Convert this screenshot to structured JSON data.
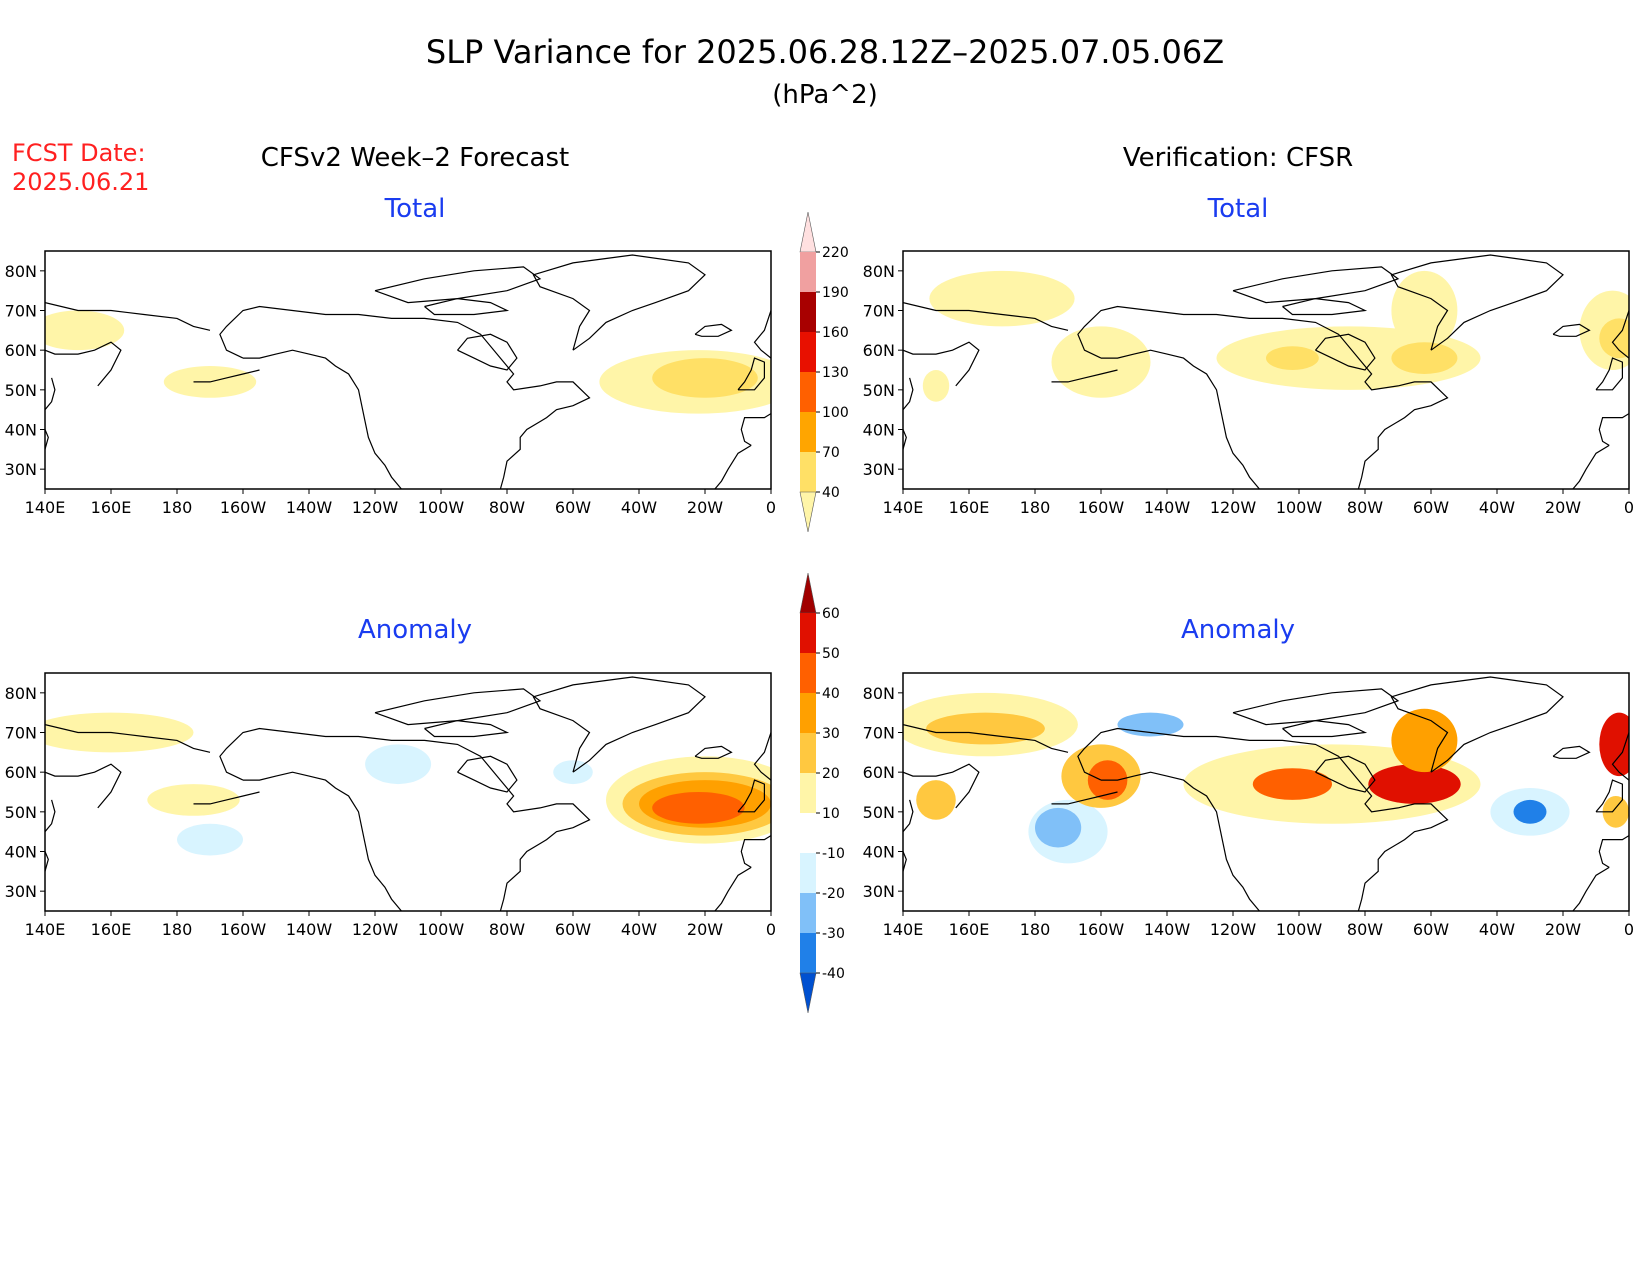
{
  "title": "SLP Variance for 2025.06.28.12Z–2025.07.05.06Z",
  "units": "(hPa^2)",
  "fcst_date_label": "FCST Date:",
  "fcst_date": "2025.06.21",
  "column_titles": {
    "left": "CFSv2 Week–2 Forecast",
    "right": "Verification: CFSR"
  },
  "panel_titles": {
    "total": "Total",
    "anomaly": "Anomaly"
  },
  "axes": {
    "lon_labels": [
      "140E",
      "160E",
      "180",
      "160W",
      "140W",
      "120W",
      "100W",
      "80W",
      "60W",
      "40W",
      "20W",
      "0"
    ],
    "lat_labels": [
      "80N",
      "70N",
      "60N",
      "50N",
      "40N",
      "30N"
    ],
    "lon_range": [
      140,
      360
    ],
    "lat_range": [
      25,
      85
    ]
  },
  "colorbars": {
    "total": {
      "levels": [
        "40",
        "70",
        "100",
        "130",
        "160",
        "190",
        "220"
      ],
      "colors": [
        "#fff5a8",
        "#ffe066",
        "#ffa500",
        "#ff6000",
        "#e81000",
        "#a80000",
        "#f0a0a0",
        "#ffe0e0"
      ]
    },
    "anomaly": {
      "levels": [
        "-40",
        "-30",
        "-20",
        "-10",
        "10",
        "20",
        "30",
        "40",
        "50",
        "60"
      ],
      "colors": [
        "#0050d0",
        "#2080e8",
        "#80c0f8",
        "#d8f4ff",
        "#ffffff",
        "#fff5a8",
        "#ffc840",
        "#ffa000",
        "#ff6000",
        "#e01000",
        "#a00000"
      ]
    }
  },
  "map_fields": {
    "fc_total": [
      {
        "lon": 150,
        "lat": 65,
        "rx": 14,
        "ry": 5,
        "level": 0
      },
      {
        "lon": 190,
        "lat": 52,
        "rx": 14,
        "ry": 4,
        "level": 0
      },
      {
        "lon": 338,
        "lat": 52,
        "rx": 30,
        "ry": 8,
        "level": 0
      },
      {
        "lon": 340,
        "lat": 53,
        "rx": 16,
        "ry": 5,
        "level": 1
      }
    ],
    "cfsr_total": [
      {
        "lon": 170,
        "lat": 73,
        "rx": 22,
        "ry": 7,
        "level": 0
      },
      {
        "lon": 200,
        "lat": 57,
        "rx": 15,
        "ry": 9,
        "level": 0
      },
      {
        "lon": 150,
        "lat": 51,
        "rx": 4,
        "ry": 4,
        "level": 0
      },
      {
        "lon": 275,
        "lat": 58,
        "rx": 40,
        "ry": 8,
        "level": 0
      },
      {
        "lon": 298,
        "lat": 70,
        "rx": 10,
        "ry": 10,
        "level": 0
      },
      {
        "lon": 355,
        "lat": 65,
        "rx": 10,
        "ry": 10,
        "level": 0
      },
      {
        "lon": 258,
        "lat": 58,
        "rx": 8,
        "ry": 3,
        "level": 1
      },
      {
        "lon": 298,
        "lat": 58,
        "rx": 10,
        "ry": 4,
        "level": 1
      },
      {
        "lon": 357,
        "lat": 63,
        "rx": 6,
        "ry": 5,
        "level": 1
      }
    ],
    "fc_anom": [
      {
        "lon": 160,
        "lat": 70,
        "rx": 25,
        "ry": 5,
        "level": 5
      },
      {
        "lon": 185,
        "lat": 53,
        "rx": 14,
        "ry": 4,
        "level": 5
      },
      {
        "lon": 190,
        "lat": 43,
        "rx": 10,
        "ry": 4,
        "level": 3
      },
      {
        "lon": 247,
        "lat": 62,
        "rx": 10,
        "ry": 5,
        "level": 3
      },
      {
        "lon": 300,
        "lat": 60,
        "rx": 6,
        "ry": 3,
        "level": 3
      },
      {
        "lon": 340,
        "lat": 53,
        "rx": 30,
        "ry": 11,
        "level": 5
      },
      {
        "lon": 340,
        "lat": 52,
        "rx": 25,
        "ry": 8,
        "level": 6
      },
      {
        "lon": 340,
        "lat": 52,
        "rx": 20,
        "ry": 6,
        "level": 7
      },
      {
        "lon": 338,
        "lat": 51,
        "rx": 14,
        "ry": 4,
        "level": 8
      }
    ],
    "cfsr_anom": [
      {
        "lon": 165,
        "lat": 72,
        "rx": 28,
        "ry": 8,
        "level": 5
      },
      {
        "lon": 165,
        "lat": 71,
        "rx": 18,
        "ry": 4,
        "level": 6
      },
      {
        "lon": 190,
        "lat": 45,
        "rx": 12,
        "ry": 8,
        "level": 3
      },
      {
        "lon": 187,
        "lat": 46,
        "rx": 7,
        "ry": 5,
        "level": 2
      },
      {
        "lon": 200,
        "lat": 59,
        "rx": 12,
        "ry": 8,
        "level": 6
      },
      {
        "lon": 202,
        "lat": 58,
        "rx": 6,
        "ry": 5,
        "level": 8
      },
      {
        "lon": 150,
        "lat": 53,
        "rx": 6,
        "ry": 5,
        "level": 6
      },
      {
        "lon": 215,
        "lat": 72,
        "rx": 10,
        "ry": 3,
        "level": 2
      },
      {
        "lon": 270,
        "lat": 57,
        "rx": 45,
        "ry": 10,
        "level": 5
      },
      {
        "lon": 258,
        "lat": 57,
        "rx": 12,
        "ry": 4,
        "level": 8
      },
      {
        "lon": 295,
        "lat": 57,
        "rx": 14,
        "ry": 5,
        "level": 9
      },
      {
        "lon": 298,
        "lat": 68,
        "rx": 10,
        "ry": 8,
        "level": 7
      },
      {
        "lon": 330,
        "lat": 50,
        "rx": 12,
        "ry": 6,
        "level": 3
      },
      {
        "lon": 330,
        "lat": 50,
        "rx": 5,
        "ry": 3,
        "level": 1
      },
      {
        "lon": 357,
        "lat": 67,
        "rx": 6,
        "ry": 8,
        "level": 9
      },
      {
        "lon": 356,
        "lat": 50,
        "rx": 4,
        "ry": 4,
        "level": 6
      }
    ]
  }
}
